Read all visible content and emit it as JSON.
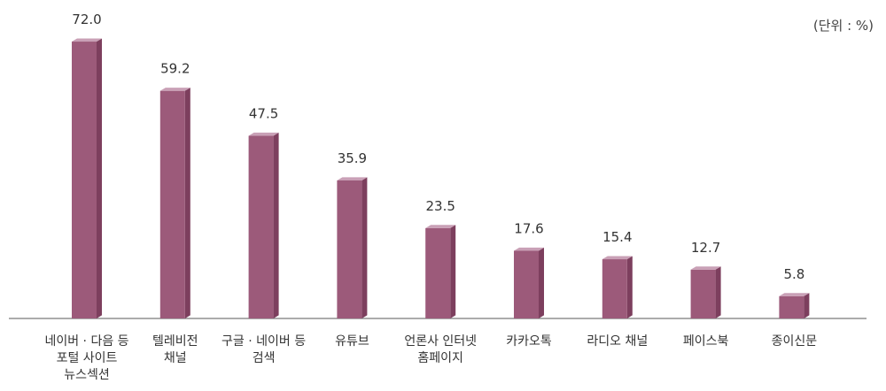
{
  "chart_data": {
    "type": "bar",
    "unit_label": "(단위 : %)",
    "categories": [
      [
        "네이버 · 다음 등",
        "포털 사이트",
        "뉴스섹션"
      ],
      [
        "텔레비전",
        "채널"
      ],
      [
        "구글 · 네이버 등",
        "검색"
      ],
      [
        "유튜브"
      ],
      [
        "언론사 인터넷",
        "홈페이지"
      ],
      [
        "카카오톡"
      ],
      [
        "라디오 채널"
      ],
      [
        "페이스북"
      ],
      [
        "종이신문"
      ]
    ],
    "values": [
      72.0,
      59.2,
      47.5,
      35.9,
      23.5,
      17.6,
      15.4,
      12.7,
      5.8
    ],
    "value_labels": [
      "72.0",
      "59.2",
      "47.5",
      "35.9",
      "23.5",
      "17.6",
      "15.4",
      "12.7",
      "5.8"
    ],
    "ylim": [
      0,
      75
    ],
    "grid": false,
    "legend": "none",
    "colors": {
      "bar_front": "#9c5a7a",
      "bar_side": "#7d3f5e",
      "bar_top": "#c9a0b6",
      "axis": "#7a7a7a",
      "value_text": "#333333",
      "category_text": "#333333"
    }
  }
}
